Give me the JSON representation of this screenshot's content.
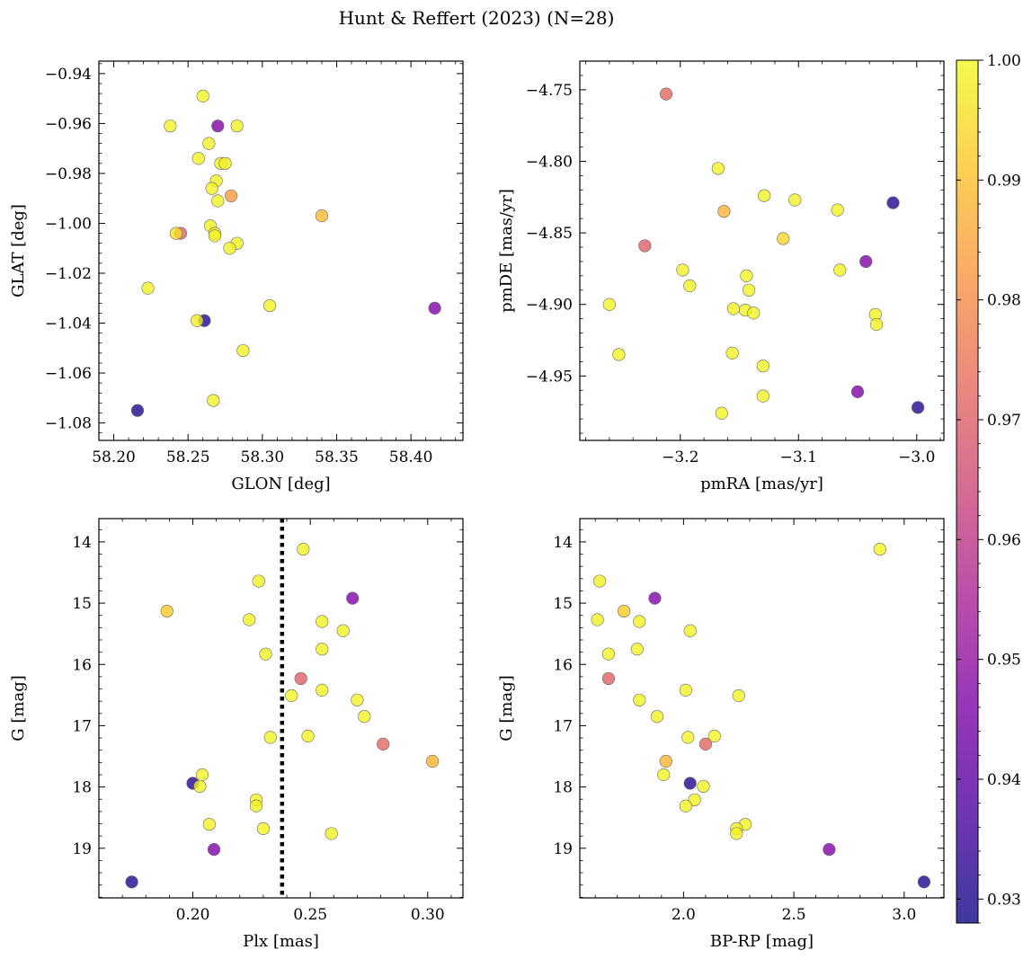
{
  "title": "Hunt & Reffert (2023) (N=28)",
  "colorbar": {
    "min": 0.928,
    "max": 1.0,
    "ticks": [
      0.93,
      0.94,
      0.95,
      0.96,
      0.97,
      0.98,
      0.99,
      1.0
    ],
    "tick_labels": [
      "0.93",
      "0.94",
      "0.95",
      "0.96",
      "0.97",
      "0.98",
      "0.99",
      "1.00"
    ],
    "colormap": "plasma"
  },
  "chart_data": [
    {
      "type": "scatter",
      "id": "glon-glat",
      "xlabel": "GLON [deg]",
      "ylabel": "GLAT [deg]",
      "xlim": [
        58.19,
        58.435
      ],
      "ylim": [
        -1.087,
        -0.935
      ],
      "xticks": [
        58.2,
        58.25,
        58.3,
        58.35,
        58.4
      ],
      "xtick_labels": [
        "58.20",
        "58.25",
        "58.30",
        "58.35",
        "58.40"
      ],
      "yticks": [
        -1.08,
        -1.06,
        -1.04,
        -1.02,
        -1.0,
        -0.98,
        -0.96,
        -0.94
      ],
      "ytick_labels": [
        "−1.08",
        "−1.06",
        "−1.04",
        "−1.02",
        "−1.00",
        "−0.98",
        "−0.96",
        "−0.94"
      ],
      "points": [
        {
          "x": 58.26,
          "y": -0.949,
          "p": 0.999
        },
        {
          "x": 58.238,
          "y": -0.961,
          "p": 0.999
        },
        {
          "x": 58.27,
          "y": -0.961,
          "p": 0.946
        },
        {
          "x": 58.283,
          "y": -0.961,
          "p": 0.998
        },
        {
          "x": 58.264,
          "y": -0.968,
          "p": 0.999
        },
        {
          "x": 58.257,
          "y": -0.974,
          "p": 0.999
        },
        {
          "x": 58.272,
          "y": -0.976,
          "p": 0.999
        },
        {
          "x": 58.275,
          "y": -0.976,
          "p": 0.998
        },
        {
          "x": 58.269,
          "y": -0.983,
          "p": 0.999
        },
        {
          "x": 58.266,
          "y": -0.986,
          "p": 0.999
        },
        {
          "x": 58.279,
          "y": -0.989,
          "p": 0.983
        },
        {
          "x": 58.27,
          "y": -0.991,
          "p": 0.999
        },
        {
          "x": 58.34,
          "y": -0.997,
          "p": 0.989
        },
        {
          "x": 58.265,
          "y": -1.001,
          "p": 0.999
        },
        {
          "x": 58.245,
          "y": -1.004,
          "p": 0.97
        },
        {
          "x": 58.242,
          "y": -1.004,
          "p": 0.996
        },
        {
          "x": 58.268,
          "y": -1.004,
          "p": 0.999
        },
        {
          "x": 58.268,
          "y": -1.005,
          "p": 0.999
        },
        {
          "x": 58.283,
          "y": -1.008,
          "p": 0.999
        },
        {
          "x": 58.278,
          "y": -1.01,
          "p": 0.999
        },
        {
          "x": 58.223,
          "y": -1.026,
          "p": 0.999
        },
        {
          "x": 58.305,
          "y": -1.033,
          "p": 0.999
        },
        {
          "x": 58.416,
          "y": -1.034,
          "p": 0.946
        },
        {
          "x": 58.261,
          "y": -1.039,
          "p": 0.931
        },
        {
          "x": 58.256,
          "y": -1.039,
          "p": 0.998
        },
        {
          "x": 58.287,
          "y": -1.051,
          "p": 0.999
        },
        {
          "x": 58.267,
          "y": -1.071,
          "p": 0.999
        },
        {
          "x": 58.216,
          "y": -1.075,
          "p": 0.93
        }
      ]
    },
    {
      "type": "scatter",
      "id": "pmra-pmde",
      "xlabel": "pmRA [mas/yr]",
      "ylabel": "pmDE [mas/yr]",
      "xlim": [
        -3.285,
        -2.977
      ],
      "ylim": [
        -4.995,
        -4.73
      ],
      "xticks": [
        -3.2,
        -3.1,
        -3.0
      ],
      "xtick_labels": [
        "−3.2",
        "−3.1",
        "−3.0"
      ],
      "yticks": [
        -4.95,
        -4.9,
        -4.85,
        -4.8,
        -4.75
      ],
      "ytick_labels": [
        "−4.95",
        "−4.90",
        "−4.85",
        "−4.80",
        "−4.75"
      ],
      "points": [
        {
          "x": -3.212,
          "y": -4.753,
          "p": 0.972
        },
        {
          "x": -3.168,
          "y": -4.805,
          "p": 0.999
        },
        {
          "x": -3.129,
          "y": -4.824,
          "p": 0.999
        },
        {
          "x": -3.103,
          "y": -4.827,
          "p": 0.999
        },
        {
          "x": -3.02,
          "y": -4.829,
          "p": 0.931
        },
        {
          "x": -3.163,
          "y": -4.835,
          "p": 0.988
        },
        {
          "x": -3.067,
          "y": -4.834,
          "p": 0.999
        },
        {
          "x": -3.113,
          "y": -4.854,
          "p": 0.994
        },
        {
          "x": -3.23,
          "y": -4.859,
          "p": 0.97
        },
        {
          "x": -3.043,
          "y": -4.87,
          "p": 0.946
        },
        {
          "x": -3.198,
          "y": -4.876,
          "p": 0.999
        },
        {
          "x": -3.065,
          "y": -4.876,
          "p": 0.999
        },
        {
          "x": -3.144,
          "y": -4.88,
          "p": 0.999
        },
        {
          "x": -3.192,
          "y": -4.887,
          "p": 0.999
        },
        {
          "x": -3.142,
          "y": -4.89,
          "p": 0.999
        },
        {
          "x": -3.26,
          "y": -4.9,
          "p": 0.999
        },
        {
          "x": -3.155,
          "y": -4.903,
          "p": 0.999
        },
        {
          "x": -3.145,
          "y": -4.904,
          "p": 0.999
        },
        {
          "x": -3.138,
          "y": -4.906,
          "p": 0.999
        },
        {
          "x": -3.035,
          "y": -4.907,
          "p": 0.999
        },
        {
          "x": -3.034,
          "y": -4.914,
          "p": 0.999
        },
        {
          "x": -3.252,
          "y": -4.935,
          "p": 0.999
        },
        {
          "x": -3.156,
          "y": -4.934,
          "p": 0.999
        },
        {
          "x": -3.13,
          "y": -4.943,
          "p": 0.999
        },
        {
          "x": -3.05,
          "y": -4.961,
          "p": 0.946
        },
        {
          "x": -3.13,
          "y": -4.964,
          "p": 0.999
        },
        {
          "x": -2.999,
          "y": -4.972,
          "p": 0.931
        },
        {
          "x": -3.165,
          "y": -4.976,
          "p": 0.999
        }
      ]
    },
    {
      "type": "scatter",
      "id": "plx-g",
      "xlabel": "Plx [mas]",
      "ylabel": "G [mag]",
      "xlim": [
        0.16,
        0.315
      ],
      "ylim": [
        19.81,
        13.62
      ],
      "xticks": [
        0.2,
        0.25,
        0.3
      ],
      "xtick_labels": [
        "0.20",
        "0.25",
        "0.30"
      ],
      "yticks": [
        14,
        15,
        16,
        17,
        18,
        19
      ],
      "ytick_labels": [
        "14",
        "15",
        "16",
        "17",
        "18",
        "19"
      ],
      "reference_line": {
        "x": 0.238,
        "style": "dotted"
      },
      "points": [
        {
          "x": 0.247,
          "y": 14.12,
          "p": 0.999
        },
        {
          "x": 0.228,
          "y": 14.64,
          "p": 0.999
        },
        {
          "x": 0.268,
          "y": 14.92,
          "p": 0.946
        },
        {
          "x": 0.189,
          "y": 15.13,
          "p": 0.992
        },
        {
          "x": 0.224,
          "y": 15.27,
          "p": 0.999
        },
        {
          "x": 0.255,
          "y": 15.3,
          "p": 0.999
        },
        {
          "x": 0.264,
          "y": 15.45,
          "p": 0.999
        },
        {
          "x": 0.255,
          "y": 15.75,
          "p": 0.999
        },
        {
          "x": 0.231,
          "y": 15.83,
          "p": 0.999
        },
        {
          "x": 0.246,
          "y": 16.23,
          "p": 0.97
        },
        {
          "x": 0.255,
          "y": 16.42,
          "p": 0.999
        },
        {
          "x": 0.242,
          "y": 16.51,
          "p": 0.999
        },
        {
          "x": 0.27,
          "y": 16.58,
          "p": 0.999
        },
        {
          "x": 0.273,
          "y": 16.85,
          "p": 0.999
        },
        {
          "x": 0.249,
          "y": 17.17,
          "p": 0.999
        },
        {
          "x": 0.233,
          "y": 17.19,
          "p": 0.999
        },
        {
          "x": 0.281,
          "y": 17.3,
          "p": 0.972
        },
        {
          "x": 0.302,
          "y": 17.58,
          "p": 0.988
        },
        {
          "x": 0.204,
          "y": 17.8,
          "p": 0.999
        },
        {
          "x": 0.2,
          "y": 17.94,
          "p": 0.931
        },
        {
          "x": 0.203,
          "y": 17.99,
          "p": 0.999
        },
        {
          "x": 0.227,
          "y": 18.21,
          "p": 0.999
        },
        {
          "x": 0.227,
          "y": 18.31,
          "p": 0.999
        },
        {
          "x": 0.207,
          "y": 18.61,
          "p": 0.999
        },
        {
          "x": 0.23,
          "y": 18.68,
          "p": 0.999
        },
        {
          "x": 0.259,
          "y": 18.76,
          "p": 0.999
        },
        {
          "x": 0.209,
          "y": 19.02,
          "p": 0.946
        },
        {
          "x": 0.174,
          "y": 19.55,
          "p": 0.93
        }
      ]
    },
    {
      "type": "scatter",
      "id": "bprp-g",
      "xlabel": "BP-RP [mag]",
      "ylabel": "G [mag]",
      "xlim": [
        1.53,
        3.18
      ],
      "ylim": [
        19.81,
        13.62
      ],
      "xticks": [
        2.0,
        2.5,
        3.0
      ],
      "xtick_labels": [
        "2.0",
        "2.5",
        "3.0"
      ],
      "yticks": [
        14,
        15,
        16,
        17,
        18,
        19
      ],
      "ytick_labels": [
        "14",
        "15",
        "16",
        "17",
        "18",
        "19"
      ],
      "points": [
        {
          "x": 2.89,
          "y": 14.12,
          "p": 0.999
        },
        {
          "x": 1.62,
          "y": 14.64,
          "p": 0.999
        },
        {
          "x": 1.87,
          "y": 14.92,
          "p": 0.946
        },
        {
          "x": 1.73,
          "y": 15.13,
          "p": 0.992
        },
        {
          "x": 1.61,
          "y": 15.27,
          "p": 0.999
        },
        {
          "x": 1.8,
          "y": 15.3,
          "p": 0.999
        },
        {
          "x": 2.03,
          "y": 15.45,
          "p": 0.999
        },
        {
          "x": 1.79,
          "y": 15.75,
          "p": 0.999
        },
        {
          "x": 1.66,
          "y": 15.83,
          "p": 0.999
        },
        {
          "x": 1.66,
          "y": 16.23,
          "p": 0.97
        },
        {
          "x": 2.01,
          "y": 16.42,
          "p": 0.999
        },
        {
          "x": 2.25,
          "y": 16.51,
          "p": 0.999
        },
        {
          "x": 1.8,
          "y": 16.58,
          "p": 0.999
        },
        {
          "x": 1.88,
          "y": 16.85,
          "p": 0.999
        },
        {
          "x": 2.14,
          "y": 17.17,
          "p": 0.999
        },
        {
          "x": 2.02,
          "y": 17.19,
          "p": 0.999
        },
        {
          "x": 2.1,
          "y": 17.3,
          "p": 0.972
        },
        {
          "x": 1.92,
          "y": 17.58,
          "p": 0.988
        },
        {
          "x": 1.91,
          "y": 17.8,
          "p": 0.999
        },
        {
          "x": 2.03,
          "y": 17.94,
          "p": 0.931
        },
        {
          "x": 2.09,
          "y": 17.99,
          "p": 0.999
        },
        {
          "x": 2.05,
          "y": 18.21,
          "p": 0.999
        },
        {
          "x": 2.01,
          "y": 18.31,
          "p": 0.999
        },
        {
          "x": 2.28,
          "y": 18.61,
          "p": 0.999
        },
        {
          "x": 2.24,
          "y": 18.68,
          "p": 0.999
        },
        {
          "x": 2.24,
          "y": 18.76,
          "p": 0.999
        },
        {
          "x": 2.66,
          "y": 19.02,
          "p": 0.946
        },
        {
          "x": 3.09,
          "y": 19.55,
          "p": 0.93
        }
      ]
    }
  ]
}
